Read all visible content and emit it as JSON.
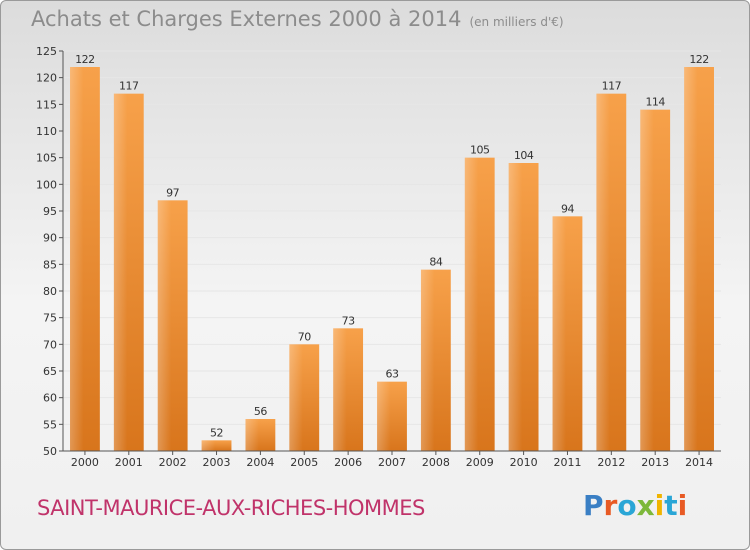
{
  "header": {
    "title": "Achats et Charges Externes 2000 à 2014",
    "unit": "(en milliers d'€)"
  },
  "footer": {
    "commune": "SAINT-MAURICE-AUX-RICHES-HOMMES",
    "brand": "Proxiti"
  },
  "colors": {
    "bar_top": "#f7a14a",
    "bar_bottom": "#d8751c",
    "commune": "#c0336a",
    "title": "#8c8c8c"
  },
  "chart_data": {
    "type": "bar",
    "title": "Achats et Charges Externes 2000 à 2014",
    "categories": [
      "2000",
      "2001",
      "2002",
      "2003",
      "2004",
      "2005",
      "2006",
      "2007",
      "2008",
      "2009",
      "2010",
      "2011",
      "2012",
      "2013",
      "2014"
    ],
    "values": [
      122,
      117,
      97,
      52,
      56,
      70,
      73,
      63,
      84,
      105,
      104,
      94,
      117,
      114,
      122
    ],
    "data_labels": [
      "122",
      "117",
      "97",
      "52",
      "56",
      "70",
      "73",
      "63",
      "84",
      "105",
      "104",
      "94",
      "117",
      "114",
      "122"
    ],
    "ylim": [
      50,
      125
    ],
    "yticks": [
      50,
      55,
      60,
      65,
      70,
      75,
      80,
      85,
      90,
      95,
      100,
      105,
      110,
      115,
      120,
      125
    ],
    "xlabel": "",
    "ylabel": "",
    "grid": true,
    "legend": "none"
  }
}
